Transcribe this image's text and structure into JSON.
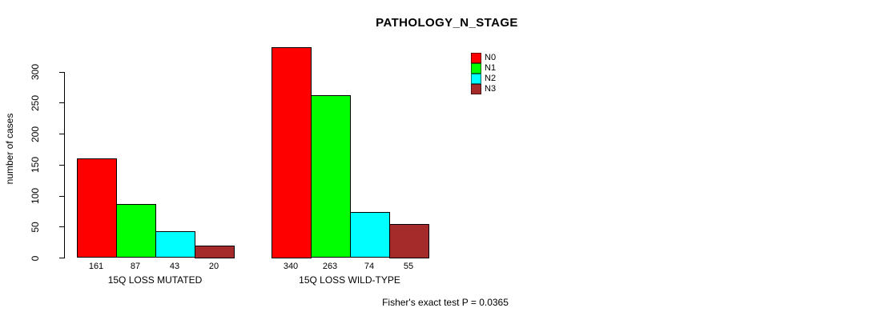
{
  "title": "PATHOLOGY_N_STAGE",
  "footer": "Fisher's exact test P = 0.0365",
  "chart_data": {
    "type": "bar",
    "title": "PATHOLOGY_N_STAGE",
    "xlabel": "",
    "ylabel": "number of cases",
    "categories": [
      "15Q LOSS MUTATED",
      "15Q LOSS WILD-TYPE"
    ],
    "series": [
      {
        "name": "N0",
        "color": "#ff0000",
        "values": [
          161,
          340
        ]
      },
      {
        "name": "N1",
        "color": "#00ff00",
        "values": [
          87,
          263
        ]
      },
      {
        "name": "N2",
        "color": "#00ffff",
        "values": [
          43,
          74
        ]
      },
      {
        "name": "N3",
        "color": "#a52a2a",
        "values": [
          20,
          55
        ]
      }
    ],
    "yticks": [
      0,
      50,
      100,
      150,
      200,
      250,
      300
    ],
    "ylim": [
      0,
      340
    ],
    "grid": false,
    "bar_value_labels_shown": true,
    "legend_position": "top-right",
    "annotation": "Fisher's exact test P = 0.0365"
  }
}
